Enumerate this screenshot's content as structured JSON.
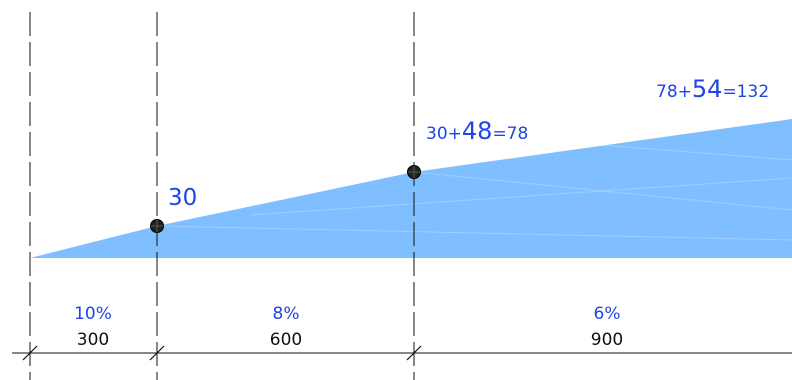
{
  "colors": {
    "fill": "#7fbfff",
    "label": "#1f45e6",
    "line": "#111111"
  },
  "annotations": {
    "first_value": "30",
    "second_prefix": "30+",
    "second_big": "48",
    "second_suffix": "=78",
    "third_prefix": "78+",
    "third_big": "54",
    "third_suffix": "=132"
  },
  "segments": [
    {
      "percent": "10%",
      "length": "300"
    },
    {
      "percent": "8%",
      "length": "600"
    },
    {
      "percent": "6%",
      "length": "900"
    }
  ]
}
